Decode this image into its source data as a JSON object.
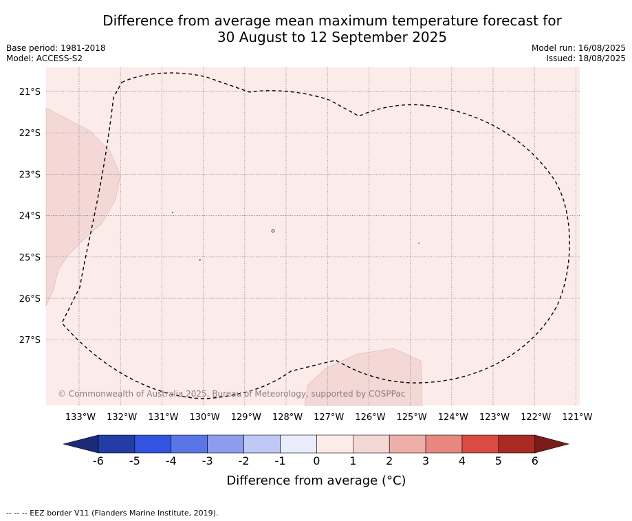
{
  "header": {
    "title_line1": "Difference from average mean maximum temperature forecast for",
    "title_line2": "30 August to 12 September 2025",
    "base_period": "Base period: 1981-2018",
    "model": "Model: ACCESS-S2",
    "model_run": "Model run: 16/08/2025",
    "issued": "Issued: 18/08/2025"
  },
  "map": {
    "background_color": "#fbebe9",
    "anomaly_1_2_color": "#f4d8d5",
    "lat_labels": [
      "21°S",
      "22°S",
      "23°S",
      "24°S",
      "25°S",
      "26°S",
      "27°S"
    ],
    "lon_labels": [
      "133°W",
      "132°W",
      "131°W",
      "130°W",
      "129°W",
      "128°W",
      "127°W",
      "126°W",
      "125°W",
      "124°W",
      "123°W",
      "122°W",
      "121°W"
    ],
    "copyright": "© Commonwealth of Australia 2025, Bureau of Meteorology, supported by COSPPac"
  },
  "colorbar": {
    "ticks": [
      "-6",
      "-5",
      "-4",
      "-3",
      "-2",
      "-1",
      "0",
      "1",
      "2",
      "3",
      "4",
      "5",
      "6"
    ],
    "colors": [
      "#233ca6",
      "#3354e0",
      "#5a76e6",
      "#8c9ded",
      "#c0c8f5",
      "#e9ecfb",
      "#fbebe9",
      "#f4d8d5",
      "#eeafa9",
      "#e8877f",
      "#da4b41",
      "#aa2b24"
    ],
    "under_color": "#1c2a78",
    "over_color": "#7a1c18",
    "title": "Difference from average (°C)"
  },
  "footer": {
    "legend_text": "-- -- -- EEZ border V11 (Flanders Marine Institute, 2019)."
  }
}
